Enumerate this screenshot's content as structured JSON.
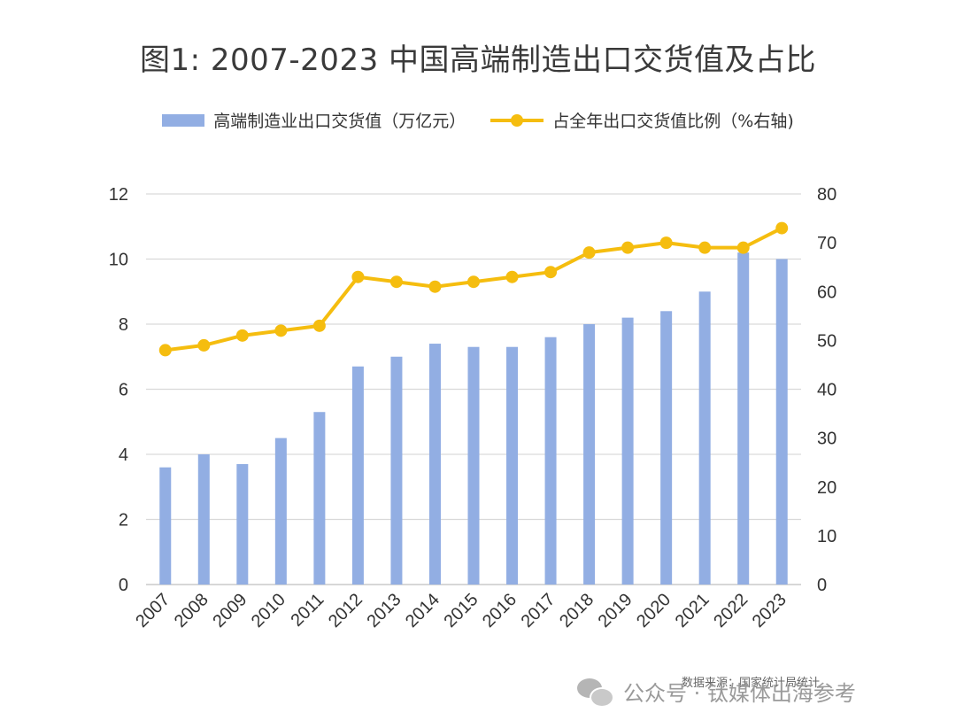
{
  "chart_data": {
    "type": "bar",
    "title": "图1: 2007-2023 中国高端制造出口交货值及占比",
    "categories": [
      "2007",
      "2008",
      "2009",
      "2010",
      "2011",
      "2012",
      "2013",
      "2014",
      "2015",
      "2016",
      "2017",
      "2018",
      "2019",
      "2020",
      "2021",
      "2022",
      "2023"
    ],
    "series": [
      {
        "name": "高端制造业出口交货值（万亿元）",
        "type": "bar",
        "axis": "left",
        "values": [
          3.6,
          4.0,
          3.7,
          4.5,
          5.3,
          6.7,
          7.0,
          7.4,
          7.3,
          7.3,
          7.6,
          8.0,
          8.2,
          8.4,
          9.0,
          10.2,
          10.0
        ]
      },
      {
        "name": "占全年出口交货值比例（%右轴)",
        "type": "line",
        "axis": "right",
        "values": [
          48,
          49,
          51,
          52,
          53,
          63,
          62,
          61,
          62,
          63,
          64,
          68,
          69,
          70,
          69,
          69,
          73
        ]
      }
    ],
    "y_left": {
      "min": 0,
      "max": 12,
      "ticks": [
        0,
        2,
        4,
        6,
        8,
        10,
        12
      ]
    },
    "y_right": {
      "min": 0,
      "max": 80,
      "ticks": [
        0,
        10,
        20,
        30,
        40,
        50,
        60,
        70,
        80
      ]
    },
    "grid": true,
    "legend_position": "top-center",
    "colors": {
      "bar": "#92aee3",
      "line": "#f5bd0f",
      "grid": "#d9d9d9",
      "axis_text": "#333333"
    }
  },
  "source_note": "数据来源：国家统计局统计",
  "footer": {
    "icon": "wechat-icon",
    "text": "公众号 · 钛媒体出海参考"
  }
}
